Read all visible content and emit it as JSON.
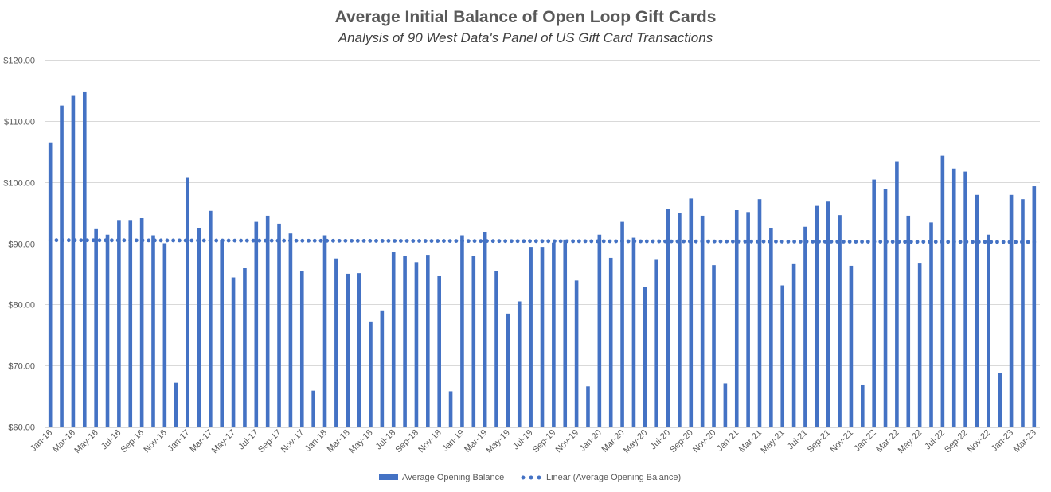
{
  "chart_data": {
    "type": "bar",
    "title": "Average Initial Balance of Open Loop Gift Cards",
    "subtitle": "Analysis of 90 West Data's Panel of US Gift Card Transactions",
    "xlabel": "",
    "ylabel": "",
    "ylim": [
      60,
      120
    ],
    "yticks": [
      60,
      70,
      80,
      90,
      100,
      110,
      120
    ],
    "ytick_labels": [
      "$60.00",
      "$70.00",
      "$80.00",
      "$90.00",
      "$100.00",
      "$110.00",
      "$120.00"
    ],
    "grid": true,
    "legend_position": "bottom",
    "bar_color": "#4472c4",
    "trend_color": "#4472c4",
    "categories": [
      "Jan-16",
      "Feb-16",
      "Mar-16",
      "Apr-16",
      "May-16",
      "Jun-16",
      "Jul-16",
      "Aug-16",
      "Sep-16",
      "Oct-16",
      "Nov-16",
      "Dec-16",
      "Jan-17",
      "Feb-17",
      "Mar-17",
      "Apr-17",
      "May-17",
      "Jun-17",
      "Jul-17",
      "Aug-17",
      "Sep-17",
      "Oct-17",
      "Nov-17",
      "Dec-17",
      "Jan-18",
      "Feb-18",
      "Mar-18",
      "Apr-18",
      "May-18",
      "Jun-18",
      "Jul-18",
      "Aug-18",
      "Sep-18",
      "Oct-18",
      "Nov-18",
      "Dec-18",
      "Jan-19",
      "Feb-19",
      "Mar-19",
      "Apr-19",
      "May-19",
      "Jun-19",
      "Jul-19",
      "Aug-19",
      "Sep-19",
      "Oct-19",
      "Nov-19",
      "Dec-19",
      "Jan-20",
      "Feb-20",
      "Mar-20",
      "Apr-20",
      "May-20",
      "Jun-20",
      "Jul-20",
      "Aug-20",
      "Sep-20",
      "Oct-20",
      "Nov-20",
      "Dec-20",
      "Jan-21",
      "Feb-21",
      "Mar-21",
      "Apr-21",
      "May-21",
      "Jun-21",
      "Jul-21",
      "Aug-21",
      "Sep-21",
      "Oct-21",
      "Nov-21",
      "Dec-21",
      "Jan-22",
      "Feb-22",
      "Mar-22",
      "Apr-22",
      "May-22",
      "Jun-22",
      "Jul-22",
      "Aug-22",
      "Sep-22",
      "Oct-22",
      "Nov-22",
      "Dec-22",
      "Jan-23",
      "Feb-23",
      "Mar-23"
    ],
    "x_tick_labels": [
      "Jan-16",
      "Mar-16",
      "May-16",
      "Jul-16",
      "Sep-16",
      "Nov-16",
      "Jan-17",
      "Mar-17",
      "May-17",
      "Jul-17",
      "Sep-17",
      "Nov-17",
      "Jan-18",
      "Mar-18",
      "May-18",
      "Jul-18",
      "Sep-18",
      "Nov-18",
      "Jan-19",
      "Mar-19",
      "May-19",
      "Jul-19",
      "Sep-19",
      "Nov-19",
      "Jan-20",
      "Mar-20",
      "May-20",
      "Jul-20",
      "Sep-20",
      "Nov-20",
      "Jan-21",
      "Mar-21",
      "May-21",
      "Jul-21",
      "Sep-21",
      "Nov-21",
      "Jan-22",
      "Mar-22",
      "May-22",
      "Jul-22",
      "Sep-22",
      "Nov-22",
      "Jan-23",
      "Mar-23"
    ],
    "series": [
      {
        "name": "Average Opening Balance",
        "type": "bar",
        "values": [
          106.5,
          112.5,
          114.2,
          114.8,
          92.3,
          91.4,
          93.8,
          93.8,
          94.1,
          91.3,
          90.0,
          67.2,
          100.8,
          92.5,
          95.3,
          90.5,
          84.4,
          85.9,
          93.5,
          94.5,
          93.2,
          91.6,
          85.5,
          65.9,
          91.3,
          87.5,
          85.0,
          85.1,
          77.2,
          78.9,
          88.5,
          87.9,
          86.9,
          88.1,
          84.6,
          65.8,
          91.3,
          87.9,
          91.8,
          85.5,
          78.5,
          80.5,
          89.4,
          89.4,
          90.1,
          90.6,
          83.9,
          66.6,
          91.4,
          87.6,
          93.5,
          90.9,
          82.9,
          87.4,
          95.6,
          94.9,
          97.3,
          94.5,
          86.4,
          67.1,
          95.4,
          95.1,
          97.2,
          92.5,
          83.1,
          86.7,
          92.7,
          96.1,
          96.8,
          94.6,
          86.3,
          66.9,
          100.4,
          98.9,
          103.4,
          94.5,
          86.8,
          93.4,
          104.3,
          102.2,
          101.7,
          97.9,
          91.4,
          68.8,
          97.9,
          97.2,
          99.3
        ]
      },
      {
        "name": "Linear (Average Opening Balance)",
        "type": "trendline",
        "start": 90.5,
        "end": 90.2
      }
    ]
  }
}
